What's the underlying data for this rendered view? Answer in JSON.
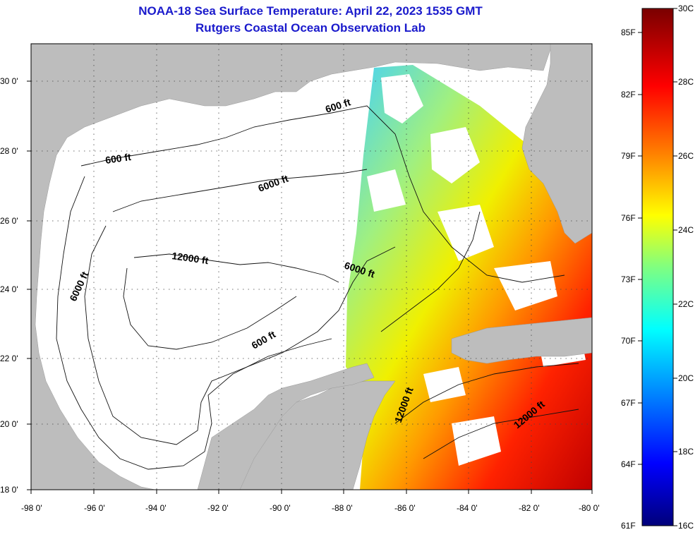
{
  "header": {
    "title": "NOAA-18 Sea Surface Temperature:  April 22, 2023 1535 GMT",
    "subtitle": "Rutgers Coastal Ocean Observation Lab"
  },
  "axes": {
    "lon_labels": [
      "-98 0'",
      "-96 0'",
      "-94 0'",
      "-92 0'",
      "-90 0'",
      "-88 0'",
      "-86 0'",
      "-84 0'",
      "-82 0'",
      "-80 0'"
    ],
    "lat_labels": [
      "30 0'",
      "28 0'",
      "26 0'",
      "24 0'",
      "22 0'",
      "20 0'",
      "18 0'"
    ]
  },
  "contours": {
    "labels": [
      "600 ft",
      "600 ft",
      "6000 ft",
      "6000 ft",
      "6000 ft",
      "12000 ft",
      "600 ft",
      "12000 ft",
      "12000 ft"
    ]
  },
  "colorbar": {
    "fahrenheit": [
      "85F",
      "82F",
      "79F",
      "76F",
      "73F",
      "70F",
      "67F",
      "64F",
      "61F"
    ],
    "celsius": [
      "30C",
      "28C",
      "26C",
      "24C",
      "22C",
      "20C",
      "18C",
      "16C"
    ]
  },
  "colors": {
    "land": "#bdbdbd",
    "no_data": "#ffffff",
    "title": "#1a1acc"
  }
}
